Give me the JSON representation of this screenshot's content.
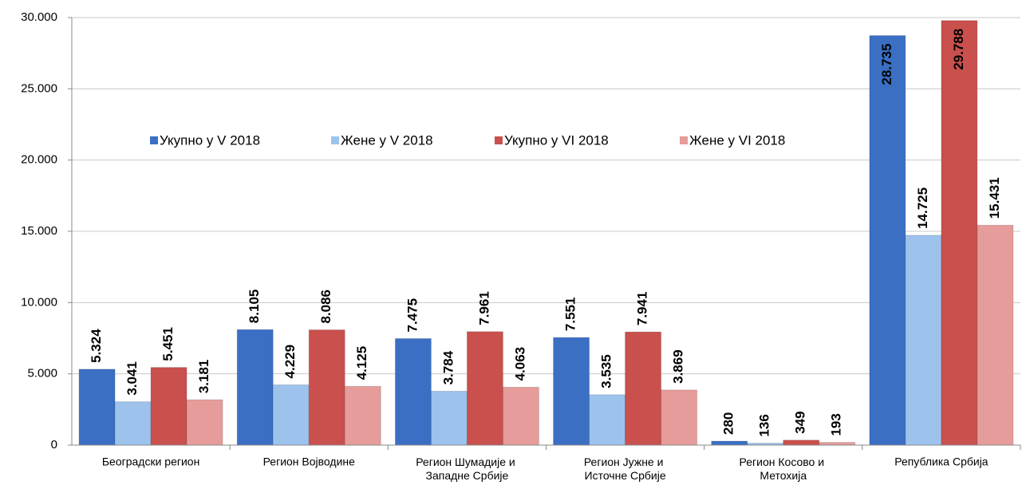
{
  "chart_data": {
    "type": "bar",
    "categories": [
      "Београдски регион",
      "Регион Војводине",
      "Регион Шумадије и Западне Србије",
      "Регион Јужне и Источне Србије",
      "Регион Косово и Метохија",
      "Република Србија"
    ],
    "series": [
      {
        "name": "Укупно у V 2018",
        "color": "#3a6fc4",
        "values": [
          5324,
          8105,
          7475,
          7551,
          280,
          28735
        ],
        "value_labels": [
          "5.324",
          "8.105",
          "7.475",
          "7.551",
          "280",
          "28.735"
        ]
      },
      {
        "name": "Жене у V 2018",
        "color": "#9dc3ec",
        "values": [
          3041,
          4229,
          3784,
          3535,
          136,
          14725
        ],
        "value_labels": [
          "3.041",
          "4.229",
          "3.784",
          "3.535",
          "136",
          "14.725"
        ]
      },
      {
        "name": "Укупно у VI 2018",
        "color": "#c9504d",
        "values": [
          5451,
          8086,
          7961,
          7941,
          349,
          29788
        ],
        "value_labels": [
          "5.451",
          "8.086",
          "7.961",
          "7.941",
          "349",
          "29.788"
        ]
      },
      {
        "name": "Жене у VI 2018",
        "color": "#e69c9a",
        "values": [
          3181,
          4125,
          4063,
          3869,
          193,
          15431
        ],
        "value_labels": [
          "3.181",
          "4.125",
          "4.063",
          "3.869",
          "193",
          "15.431"
        ]
      }
    ],
    "ylim": [
      0,
      30000
    ],
    "yticks": [
      0,
      {
        "value": 5000,
        "label": "5.000"
      },
      {
        "value": 10000,
        "label": "10.000"
      },
      {
        "value": 15000,
        "label": "15.000"
      },
      {
        "value": 20000,
        "label": "20.000"
      },
      {
        "value": 25000,
        "label": "25.000"
      },
      {
        "value": 30000,
        "label": "30.000"
      }
    ],
    "grid": true,
    "legend": "top"
  }
}
